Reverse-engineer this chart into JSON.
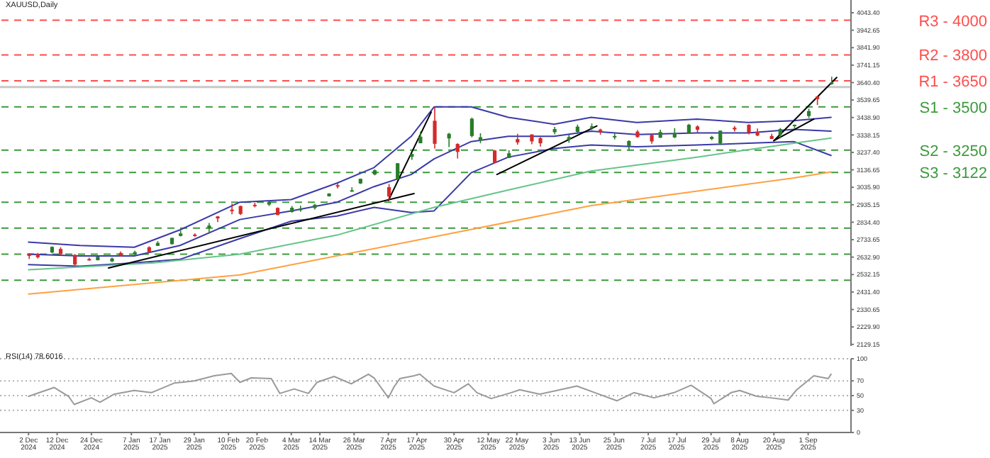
{
  "chart_data": [
    {
      "type": "candlestick",
      "title": "XAUUSD,Daily",
      "tick_labels": "y",
      "xlim": [
        "2024-11-22",
        "2025-09-16"
      ],
      "ylim": [
        2120,
        4117
      ],
      "yticks": [
        {
          "value": 2129.15,
          "label": "2129.15"
        },
        {
          "value": 2229.9,
          "label": "2229.90"
        },
        {
          "value": 2330.65,
          "label": "2330.65"
        },
        {
          "value": 2431.4,
          "label": "2431.40"
        },
        {
          "value": 2532.15,
          "label": "2532.15"
        },
        {
          "value": 2632.9,
          "label": "2632.90"
        },
        {
          "value": 2733.65,
          "label": "2733.65"
        },
        {
          "value": 2834.4,
          "label": "2834.40"
        },
        {
          "value": 2935.15,
          "label": "2935.15"
        },
        {
          "value": 3035.9,
          "label": "3035.90"
        },
        {
          "value": 3136.65,
          "label": "3136.65"
        },
        {
          "value": 3237.4,
          "label": "3237.40"
        },
        {
          "value": 3338.15,
          "label": "3338.15"
        },
        {
          "value": 3438.9,
          "label": "3438.90"
        },
        {
          "value": 3539.65,
          "label": "3539.65"
        },
        {
          "value": 3640.4,
          "label": "3640.40"
        },
        {
          "value": 3741.15,
          "label": "3741.15"
        },
        {
          "value": 3841.9,
          "label": "3841.90"
        },
        {
          "value": 3942.65,
          "label": "3942.65"
        },
        {
          "value": 4043.4,
          "label": "4043.40"
        }
      ],
      "x": [
        "2024-12-02",
        "2024-12-05",
        "2024-12-10",
        "2024-12-13",
        "2024-12-18",
        "2024-12-23",
        "2024-12-26",
        "2024-12-31",
        "2025-01-03",
        "2025-01-08",
        "2025-01-13",
        "2025-01-16",
        "2025-01-21",
        "2025-01-24",
        "2025-01-29",
        "2025-02-03",
        "2025-02-06",
        "2025-02-11",
        "2025-02-14",
        "2025-02-19",
        "2025-02-24",
        "2025-02-27",
        "2025-03-04",
        "2025-03-07",
        "2025-03-12",
        "2025-03-17",
        "2025-03-20",
        "2025-03-25",
        "2025-03-28",
        "2025-04-02",
        "2025-04-07",
        "2025-04-10",
        "2025-04-15",
        "2025-04-18",
        "2025-04-23",
        "2025-04-28",
        "2025-05-01",
        "2025-05-06",
        "2025-05-09",
        "2025-05-14",
        "2025-05-19",
        "2025-05-22",
        "2025-05-27",
        "2025-05-30",
        "2025-06-04",
        "2025-06-09",
        "2025-06-12",
        "2025-06-17",
        "2025-06-20",
        "2025-06-25",
        "2025-06-30",
        "2025-07-03",
        "2025-07-08",
        "2025-07-11",
        "2025-07-16",
        "2025-07-21",
        "2025-07-24",
        "2025-07-29",
        "2025-08-01",
        "2025-08-06",
        "2025-08-11",
        "2025-08-14",
        "2025-08-19",
        "2025-08-22",
        "2025-08-27",
        "2025-09-01",
        "2025-09-04",
        "2025-09-09"
      ],
      "ohlc": [
        [
          2650,
          2655,
          2622,
          2640
        ],
        [
          2650,
          2657,
          2625,
          2632
        ],
        [
          2660,
          2695,
          2655,
          2692
        ],
        [
          2680,
          2690,
          2645,
          2650
        ],
        [
          2645,
          2650,
          2585,
          2590
        ],
        [
          2622,
          2630,
          2612,
          2614
        ],
        [
          2615,
          2638,
          2614,
          2635
        ],
        [
          2608,
          2630,
          2605,
          2625
        ],
        [
          2657,
          2665,
          2636,
          2640
        ],
        [
          2648,
          2670,
          2645,
          2662
        ],
        [
          2690,
          2695,
          2656,
          2662
        ],
        [
          2698,
          2725,
          2697,
          2715
        ],
        [
          2708,
          2745,
          2705,
          2744
        ],
        [
          2755,
          2786,
          2752,
          2770
        ],
        [
          2763,
          2770,
          2750,
          2760
        ],
        [
          2800,
          2830,
          2770,
          2815
        ],
        [
          2868,
          2870,
          2835,
          2856
        ],
        [
          2907,
          2942,
          2880,
          2898
        ],
        [
          2928,
          2930,
          2876,
          2882
        ],
        [
          2935,
          2947,
          2920,
          2933
        ],
        [
          2936,
          2956,
          2928,
          2952
        ],
        [
          2917,
          2920,
          2875,
          2876
        ],
        [
          2893,
          2928,
          2890,
          2918
        ],
        [
          2910,
          2930,
          2895,
          2912
        ],
        [
          2916,
          2940,
          2908,
          2935
        ],
        [
          2984,
          3002,
          2982,
          3000
        ],
        [
          3048,
          3058,
          3030,
          3043
        ],
        [
          3012,
          3036,
          3010,
          3019
        ],
        [
          3058,
          3086,
          3055,
          3085
        ],
        [
          3110,
          3139,
          3105,
          3134
        ],
        [
          3037,
          3055,
          2957,
          2983
        ],
        [
          3082,
          3175,
          3080,
          3175
        ],
        [
          3212,
          3230,
          3194,
          3228
        ],
        [
          3290,
          3358,
          3290,
          3328
        ],
        [
          3420,
          3500,
          3260,
          3287
        ],
        [
          3318,
          3350,
          3268,
          3345
        ],
        [
          3286,
          3290,
          3202,
          3240
        ],
        [
          3332,
          3438,
          3324,
          3432
        ],
        [
          3305,
          3348,
          3290,
          3325
        ],
        [
          3248,
          3252,
          3178,
          3178
        ],
        [
          3205,
          3250,
          3205,
          3232
        ],
        [
          3314,
          3345,
          3282,
          3295
        ],
        [
          3341,
          3342,
          3284,
          3301
        ],
        [
          3320,
          3325,
          3271,
          3290
        ],
        [
          3354,
          3385,
          3342,
          3372
        ],
        [
          3310,
          3340,
          3293,
          3326
        ],
        [
          3356,
          3398,
          3343,
          3386
        ],
        [
          3386,
          3404,
          3367,
          3388
        ],
        [
          3369,
          3374,
          3340,
          3368
        ],
        [
          3324,
          3347,
          3312,
          3332
        ],
        [
          3275,
          3308,
          3247,
          3303
        ],
        [
          3357,
          3366,
          3322,
          3326
        ],
        [
          3338,
          3346,
          3287,
          3301
        ],
        [
          3322,
          3368,
          3321,
          3355
        ],
        [
          3324,
          3377,
          3320,
          3348
        ],
        [
          3349,
          3402,
          3345,
          3397
        ],
        [
          3387,
          3394,
          3351,
          3368
        ],
        [
          3315,
          3333,
          3308,
          3327
        ],
        [
          3290,
          3363,
          3280,
          3363
        ],
        [
          3380,
          3390,
          3358,
          3370
        ],
        [
          3397,
          3400,
          3342,
          3352
        ],
        [
          3356,
          3375,
          3331,
          3335
        ],
        [
          3332,
          3345,
          3315,
          3315
        ],
        [
          3338,
          3378,
          3322,
          3372
        ],
        [
          3392,
          3398,
          3376,
          3397
        ],
        [
          3447,
          3490,
          3436,
          3476
        ],
        [
          3560,
          3563,
          3511,
          3545
        ],
        [
          3635,
          3674,
          3628,
          3640
        ]
      ],
      "colors": [
        "#d42a2a",
        "#d42a2a",
        "#2a7d2a",
        "#d42a2a",
        "#d42a2a",
        "#d42a2a",
        "#2a7d2a",
        "#2a7d2a",
        "#d42a2a",
        "#2a7d2a",
        "#d42a2a",
        "#2a7d2a",
        "#2a7d2a",
        "#2a7d2a",
        "#d42a2a",
        "#2a7d2a",
        "#d42a2a",
        "#d42a2a",
        "#d42a2a",
        "#d42a2a",
        "#2a7d2a",
        "#d42a2a",
        "#2a7d2a",
        "#2a7d2a",
        "#2a7d2a",
        "#2a7d2a",
        "#d42a2a",
        "#2a7d2a",
        "#2a7d2a",
        "#2a7d2a",
        "#d42a2a",
        "#2a7d2a",
        "#2a7d2a",
        "#2a7d2a",
        "#d42a2a",
        "#2a7d2a",
        "#d42a2a",
        "#2a7d2a",
        "#2a7d2a",
        "#d42a2a",
        "#2a7d2a",
        "#d42a2a",
        "#d42a2a",
        "#d42a2a",
        "#2a7d2a",
        "#2a7d2a",
        "#2a7d2a",
        "#2a7d2a",
        "#d42a2a",
        "#2a7d2a",
        "#2a7d2a",
        "#d42a2a",
        "#d42a2a",
        "#2a7d2a",
        "#2a7d2a",
        "#2a7d2a",
        "#d42a2a",
        "#2a7d2a",
        "#2a7d2a",
        "#d42a2a",
        "#d42a2a",
        "#d42a2a",
        "#d42a2a",
        "#2a7d2a",
        "#2a7d2a",
        "#2a7d2a",
        "#d42a2a",
        "#2a7d2a"
      ],
      "series": [
        {
          "type": "line",
          "color": "#3a3aa8",
          "x": [
            "2024-12-02",
            "2024-12-20",
            "2025-01-08",
            "2025-01-24",
            "2025-02-14",
            "2025-03-04",
            "2025-03-20",
            "2025-04-02",
            "2025-04-15",
            "2025-04-23",
            "2025-05-06",
            "2025-05-19",
            "2025-06-04",
            "2025-06-17",
            "2025-07-03",
            "2025-07-24",
            "2025-08-11",
            "2025-08-27",
            "2025-09-09"
          ],
          "values": [
            2720,
            2700,
            2690,
            2790,
            2950,
            2965,
            3060,
            3150,
            3330,
            3500,
            3500,
            3440,
            3400,
            3440,
            3410,
            3430,
            3410,
            3420,
            3440
          ]
        },
        {
          "type": "line",
          "color": "#3a3aa8",
          "x": [
            "2024-12-02",
            "2024-12-20",
            "2025-01-08",
            "2025-01-24",
            "2025-02-14",
            "2025-03-04",
            "2025-03-20",
            "2025-04-02",
            "2025-04-15",
            "2025-04-23",
            "2025-05-06",
            "2025-05-19",
            "2025-06-04",
            "2025-06-17",
            "2025-07-03",
            "2025-07-24",
            "2025-08-11",
            "2025-08-27",
            "2025-09-09"
          ],
          "values": [
            2650,
            2640,
            2640,
            2700,
            2850,
            2900,
            2950,
            3040,
            3110,
            3200,
            3300,
            3330,
            3330,
            3360,
            3340,
            3350,
            3350,
            3370,
            3360
          ]
        },
        {
          "type": "line",
          "color": "#3a3aa8",
          "x": [
            "2024-12-02",
            "2024-12-20",
            "2025-01-08",
            "2025-01-24",
            "2025-02-14",
            "2025-03-04",
            "2025-03-20",
            "2025-04-02",
            "2025-04-15",
            "2025-04-23",
            "2025-05-06",
            "2025-05-19",
            "2025-06-04",
            "2025-06-17",
            "2025-07-03",
            "2025-07-24",
            "2025-08-11",
            "2025-08-27",
            "2025-09-09"
          ],
          "values": [
            2590,
            2580,
            2600,
            2620,
            2740,
            2840,
            2870,
            2920,
            2890,
            2900,
            3120,
            3210,
            3260,
            3280,
            3270,
            3280,
            3290,
            3300,
            3220
          ]
        },
        {
          "type": "line",
          "color": "#66c48a",
          "x": [
            "2024-12-02",
            "2025-01-15",
            "2025-02-14",
            "2025-03-20",
            "2025-04-23",
            "2025-05-19",
            "2025-06-17",
            "2025-07-24",
            "2025-08-27",
            "2025-09-09"
          ],
          "values": [
            2560,
            2600,
            2650,
            2760,
            2920,
            3020,
            3130,
            3210,
            3290,
            3320
          ]
        },
        {
          "type": "line",
          "color": "#ffa040",
          "x": [
            "2024-12-02",
            "2025-02-14",
            "2025-04-23",
            "2025-06-17",
            "2025-08-27",
            "2025-09-09"
          ],
          "values": [
            2420,
            2530,
            2750,
            2930,
            3090,
            3125
          ]
        },
        {
          "type": "line",
          "color": "#000000",
          "x": [
            "2024-12-30",
            "2025-04-16"
          ],
          "values": [
            2570,
            3000
          ]
        },
        {
          "type": "line",
          "color": "#000000",
          "x": [
            "2025-04-07",
            "2025-04-22"
          ],
          "values": [
            2960,
            3470
          ]
        },
        {
          "type": "line",
          "color": "#000000",
          "x": [
            "2025-05-15",
            "2025-06-19"
          ],
          "values": [
            3110,
            3390
          ]
        },
        {
          "type": "line",
          "color": "#000000",
          "x": [
            "2025-08-20",
            "2025-09-11"
          ],
          "values": [
            3305,
            3670
          ]
        },
        {
          "type": "line",
          "color": "#000000",
          "x": [
            "2025-08-20",
            "2025-09-03"
          ],
          "values": [
            3305,
            3430
          ]
        }
      ],
      "ref_lines": [
        {
          "axis": "y",
          "value": 4000,
          "label": "R3 - 4000",
          "color": "#ff4d4d",
          "line_style": "dashed"
        },
        {
          "axis": "y",
          "value": 3800,
          "label": "R2 - 3800",
          "color": "#ff4d4d",
          "line_style": "dashed"
        },
        {
          "axis": "y",
          "value": 3650,
          "label": "R1 - 3650",
          "color": "#ff4d4d",
          "line_style": "dashed"
        },
        {
          "axis": "y",
          "value": 3615,
          "label": null,
          "color": "#c8c8c8",
          "line_style": "solid"
        },
        {
          "axis": "y",
          "value": 3500,
          "label": "S1 - 3500",
          "color": "#3c9a3c",
          "line_style": "dashed"
        },
        {
          "axis": "y",
          "value": 3250,
          "label": "S2 - 3250",
          "color": "#3c9a3c",
          "line_style": "dashed"
        },
        {
          "axis": "y",
          "value": 3122,
          "label": "S3 - 3122",
          "color": "#3c9a3c",
          "line_style": "dashed"
        },
        {
          "axis": "y",
          "value": 2950,
          "label": null,
          "color": "#3c9a3c",
          "line_style": "dashed"
        },
        {
          "axis": "y",
          "value": 2800,
          "label": null,
          "color": "#3c9a3c",
          "line_style": "dashed"
        },
        {
          "axis": "y",
          "value": 2650,
          "label": null,
          "color": "#3c9a3c",
          "line_style": "dashed"
        },
        {
          "axis": "y",
          "value": 2500,
          "label": null,
          "color": "#3c9a3c",
          "line_style": "dashed"
        }
      ]
    },
    {
      "type": "line",
      "title": "RSI(14) 78.6016",
      "color": "#9a9a9a",
      "grid": "y",
      "xlim": [
        "2024-11-22",
        "2025-09-16"
      ],
      "ylim": [
        0,
        100
      ],
      "yticks": [
        0,
        30,
        50,
        70,
        100
      ],
      "xticks": [
        {
          "value": "2024-12-02",
          "label": "2 Dec 2024"
        },
        {
          "value": "2024-12-12",
          "label": "12 Dec 2024"
        },
        {
          "value": "2024-12-24",
          "label": "24 Dec 2024"
        },
        {
          "value": "2025-01-07",
          "label": "7 Jan 2025"
        },
        {
          "value": "2025-01-17",
          "label": "17 Jan 2025"
        },
        {
          "value": "2025-01-29",
          "label": "29 Jan 2025"
        },
        {
          "value": "2025-02-10",
          "label": "10 Feb 2025"
        },
        {
          "value": "2025-02-20",
          "label": "20 Feb 2025"
        },
        {
          "value": "2025-03-04",
          "label": "4 Mar 2025"
        },
        {
          "value": "2025-03-14",
          "label": "14 Mar 2025"
        },
        {
          "value": "2025-03-26",
          "label": "26 Mar 2025"
        },
        {
          "value": "2025-04-07",
          "label": "7 Apr 2025"
        },
        {
          "value": "2025-04-17",
          "label": "17 Apr 2025"
        },
        {
          "value": "2025-04-30",
          "label": "30 Apr 2025"
        },
        {
          "value": "2025-05-12",
          "label": "12 May 2025"
        },
        {
          "value": "2025-05-22",
          "label": "22 May 2025"
        },
        {
          "value": "2025-06-03",
          "label": "3 Jun 2025"
        },
        {
          "value": "2025-06-13",
          "label": "13 Jun 2025"
        },
        {
          "value": "2025-06-25",
          "label": "25 Jun 2025"
        },
        {
          "value": "2025-07-07",
          "label": "7 Jul 2025"
        },
        {
          "value": "2025-07-17",
          "label": "17 Jul 2025"
        },
        {
          "value": "2025-07-29",
          "label": "29 Jul 2025"
        },
        {
          "value": "2025-08-08",
          "label": "8 Aug 2025"
        },
        {
          "value": "2025-08-20",
          "label": "20 Aug 2025"
        },
        {
          "value": "2025-09-01",
          "label": "1 Sep 2025"
        }
      ],
      "x": [
        "2024-12-02",
        "2024-12-11",
        "2024-12-16",
        "2024-12-18",
        "2024-12-24",
        "2024-12-27",
        "2025-01-01",
        "2025-01-08",
        "2025-01-14",
        "2025-01-22",
        "2025-01-29",
        "2025-02-05",
        "2025-02-11",
        "2025-02-14",
        "2025-02-18",
        "2025-02-25",
        "2025-02-28",
        "2025-03-05",
        "2025-03-10",
        "2025-03-13",
        "2025-03-19",
        "2025-03-25",
        "2025-03-31",
        "2025-04-02",
        "2025-04-07",
        "2025-04-09",
        "2025-04-11",
        "2025-04-16",
        "2025-04-18",
        "2025-04-23",
        "2025-04-30",
        "2025-05-05",
        "2025-05-08",
        "2025-05-13",
        "2025-05-20",
        "2025-05-23",
        "2025-05-30",
        "2025-06-05",
        "2025-06-12",
        "2025-06-19",
        "2025-06-26",
        "2025-07-02",
        "2025-07-09",
        "2025-07-16",
        "2025-07-22",
        "2025-07-29",
        "2025-07-30",
        "2025-08-05",
        "2025-08-08",
        "2025-08-14",
        "2025-08-19",
        "2025-08-25",
        "2025-08-28",
        "2025-09-03",
        "2025-09-08",
        "2025-09-09"
      ],
      "values": [
        49,
        61,
        49,
        38,
        47,
        41,
        52,
        57,
        54,
        67,
        70,
        77,
        80,
        68,
        74,
        73,
        53,
        59,
        53,
        68,
        76,
        66,
        79,
        74,
        47,
        62,
        73,
        77,
        79,
        63,
        54,
        66,
        54,
        46,
        54,
        58,
        52,
        57,
        63,
        53,
        43,
        54,
        47,
        54,
        64,
        46,
        39,
        54,
        57,
        49,
        47,
        44,
        58,
        77,
        73,
        79
      ]
    }
  ]
}
